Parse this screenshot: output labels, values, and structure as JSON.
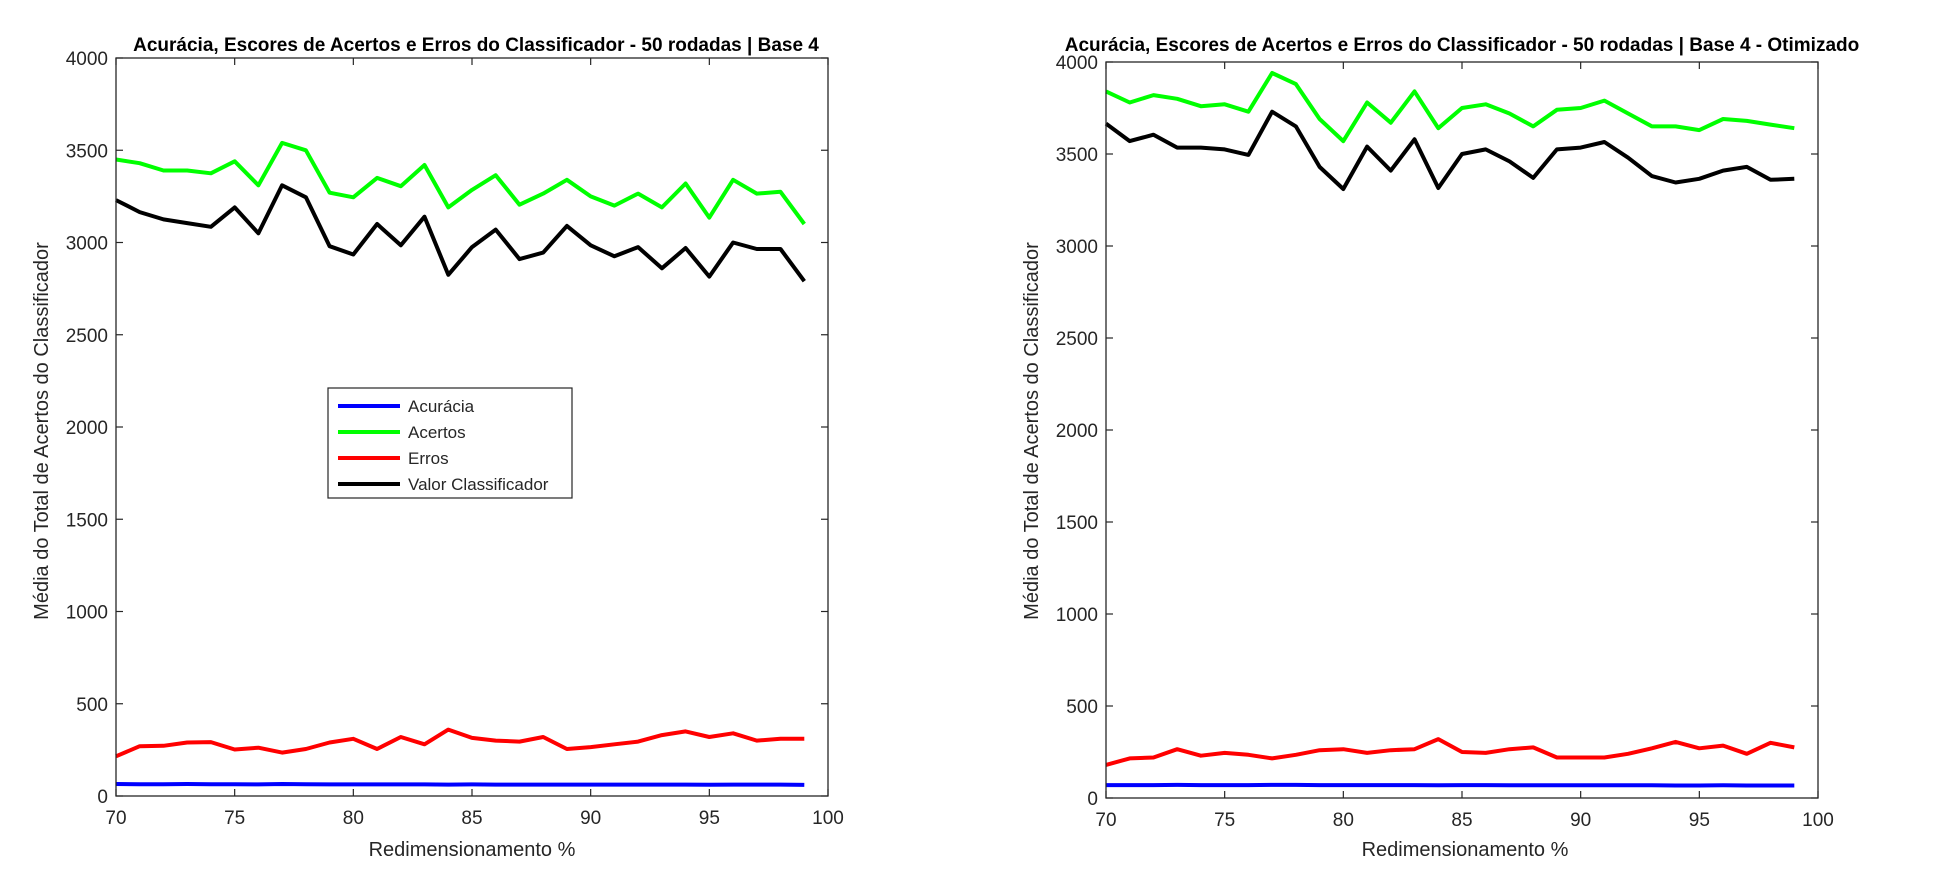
{
  "chart_data": [
    {
      "type": "line",
      "title": "Acurácia, Escores de Acertos e Erros do Classificador - 50 rodadas | Base 4",
      "xlabel": "Redimensionamento %",
      "ylabel": "Média do Total de Acertos do Classificador",
      "xlim": [
        70,
        100
      ],
      "ylim": [
        0,
        4000
      ],
      "xticks": [
        "70",
        "75",
        "80",
        "85",
        "90",
        "95",
        "100"
      ],
      "yticks": [
        "0",
        "500",
        "1000",
        "1500",
        "2000",
        "2500",
        "3000",
        "3500",
        "4000"
      ],
      "grid": false,
      "legend_position": "center-left",
      "x": [
        70,
        71,
        72,
        73,
        74,
        75,
        76,
        77,
        78,
        79,
        80,
        81,
        82,
        83,
        84,
        85,
        86,
        87,
        88,
        89,
        90,
        91,
        92,
        93,
        94,
        95,
        96,
        97,
        98,
        99
      ],
      "series": [
        {
          "name": "Acurácia",
          "color": "#0000ff",
          "values": [
            65,
            64,
            64,
            65,
            64,
            64,
            63,
            65,
            64,
            63,
            63,
            63,
            63,
            63,
            62,
            63,
            62,
            62,
            62,
            62,
            62,
            62,
            62,
            62,
            62,
            61,
            62,
            62,
            62,
            60
          ]
        },
        {
          "name": "Acertos",
          "color": "#00ff00",
          "values": [
            3450,
            3430,
            3390,
            3390,
            3375,
            3440,
            3310,
            3540,
            3500,
            3270,
            3245,
            3350,
            3305,
            3420,
            3190,
            3285,
            3365,
            3205,
            3265,
            3340,
            3250,
            3200,
            3265,
            3190,
            3320,
            3135,
            3340,
            3265,
            3275,
            3100
          ]
        },
        {
          "name": "Erros",
          "color": "#ff0000",
          "values": [
            215,
            270,
            272,
            290,
            292,
            252,
            262,
            235,
            255,
            290,
            310,
            255,
            320,
            280,
            360,
            315,
            300,
            295,
            320,
            255,
            265,
            280,
            295,
            330,
            350,
            320,
            340,
            300,
            310,
            310
          ]
        },
        {
          "name": "Valor Classificador",
          "color": "#000000",
          "values": [
            3230,
            3165,
            3125,
            3105,
            3085,
            3190,
            3050,
            3310,
            3245,
            2980,
            2935,
            3100,
            2985,
            3140,
            2825,
            2975,
            3070,
            2910,
            2945,
            3090,
            2985,
            2925,
            2975,
            2860,
            2970,
            2815,
            3000,
            2965,
            2965,
            2790
          ]
        }
      ]
    },
    {
      "type": "line",
      "title": "Acurácia, Escores de Acertos e Erros do Classificador - 50 rodadas | Base 4 - Otimizado",
      "xlabel": "Redimensionamento %",
      "ylabel": "Média do Total de Acertos do Classificador",
      "xlim": [
        70,
        100
      ],
      "ylim": [
        0,
        4000
      ],
      "xticks": [
        "70",
        "75",
        "80",
        "85",
        "90",
        "95",
        "100"
      ],
      "yticks": [
        "0",
        "500",
        "1000",
        "1500",
        "2000",
        "2500",
        "3000",
        "3500",
        "4000"
      ],
      "grid": false,
      "x": [
        70,
        71,
        72,
        73,
        74,
        75,
        76,
        77,
        78,
        79,
        80,
        81,
        82,
        83,
        84,
        85,
        86,
        87,
        88,
        89,
        90,
        91,
        92,
        93,
        94,
        95,
        96,
        97,
        98,
        99
      ],
      "series": [
        {
          "name": "Acurácia",
          "color": "#0000ff",
          "values": [
            70,
            70,
            70,
            71,
            70,
            70,
            70,
            71,
            71,
            70,
            70,
            70,
            70,
            70,
            69,
            70,
            70,
            69,
            69,
            69,
            69,
            69,
            69,
            69,
            68,
            68,
            69,
            68,
            68,
            68
          ]
        },
        {
          "name": "Acertos",
          "color": "#00ff00",
          "values": [
            3840,
            3780,
            3820,
            3800,
            3760,
            3770,
            3730,
            3940,
            3880,
            3690,
            3570,
            3780,
            3670,
            3840,
            3640,
            3750,
            3770,
            3720,
            3650,
            3740,
            3750,
            3790,
            3720,
            3650,
            3650,
            3630,
            3690,
            3680,
            3660,
            3640
          ]
        },
        {
          "name": "Erros",
          "color": "#ff0000",
          "values": [
            180,
            215,
            220,
            265,
            230,
            245,
            235,
            215,
            235,
            260,
            265,
            245,
            260,
            265,
            320,
            250,
            245,
            265,
            275,
            220,
            220,
            220,
            240,
            270,
            305,
            270,
            285,
            240,
            300,
            275
          ]
        },
        {
          "name": "Valor Classificador",
          "color": "#000000",
          "values": [
            3665,
            3570,
            3605,
            3535,
            3535,
            3525,
            3495,
            3730,
            3650,
            3430,
            3310,
            3540,
            3410,
            3580,
            3315,
            3500,
            3525,
            3460,
            3370,
            3525,
            3535,
            3565,
            3480,
            3380,
            3345,
            3365,
            3410,
            3430,
            3360,
            3365
          ]
        }
      ]
    }
  ]
}
